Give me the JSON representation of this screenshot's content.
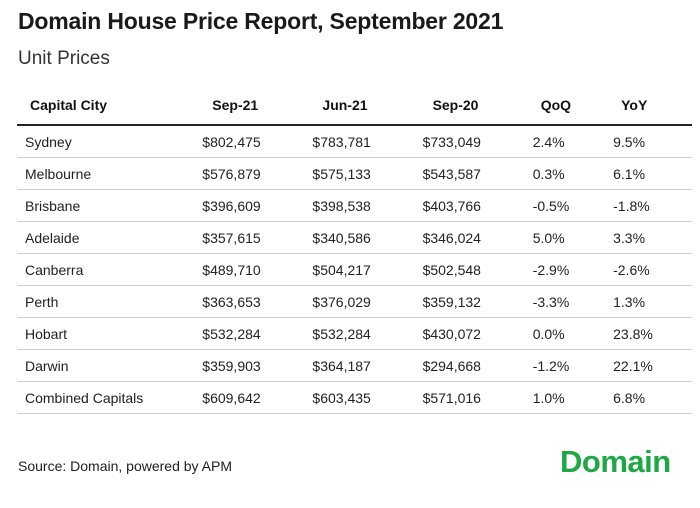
{
  "chart_data": {
    "type": "table",
    "title": "Domain House Price Report, September 2021",
    "subtitle": "Unit Prices",
    "columns": [
      "Capital City",
      "Sep-21",
      "Jun-21",
      "Sep-20",
      "QoQ",
      "YoY"
    ],
    "rows": [
      [
        "Sydney",
        "$802,475",
        "$783,781",
        "$733,049",
        "2.4%",
        "9.5%"
      ],
      [
        "Melbourne",
        "$576,879",
        "$575,133",
        "$543,587",
        "0.3%",
        "6.1%"
      ],
      [
        "Brisbane",
        "$396,609",
        "$398,538",
        "$403,766",
        "-0.5%",
        "-1.8%"
      ],
      [
        "Adelaide",
        "$357,615",
        "$340,586",
        "$346,024",
        "5.0%",
        "3.3%"
      ],
      [
        "Canberra",
        "$489,710",
        "$504,217",
        "$502,548",
        "-2.9%",
        "-2.6%"
      ],
      [
        "Perth",
        "$363,653",
        "$376,029",
        "$359,132",
        "-3.3%",
        "1.3%"
      ],
      [
        "Hobart",
        "$532,284",
        "$532,284",
        "$430,072",
        "0.0%",
        "23.8%"
      ],
      [
        "Darwin",
        "$359,903",
        "$364,187",
        "$294,668",
        "-1.2%",
        "22.1%"
      ],
      [
        "Combined Capitals",
        "$609,642",
        "$603,435",
        "$571,016",
        "1.0%",
        "6.8%"
      ]
    ],
    "source": "Source: Domain, powered by APM"
  },
  "brand": {
    "logo_text": "Domain",
    "color": "#1fa745"
  }
}
